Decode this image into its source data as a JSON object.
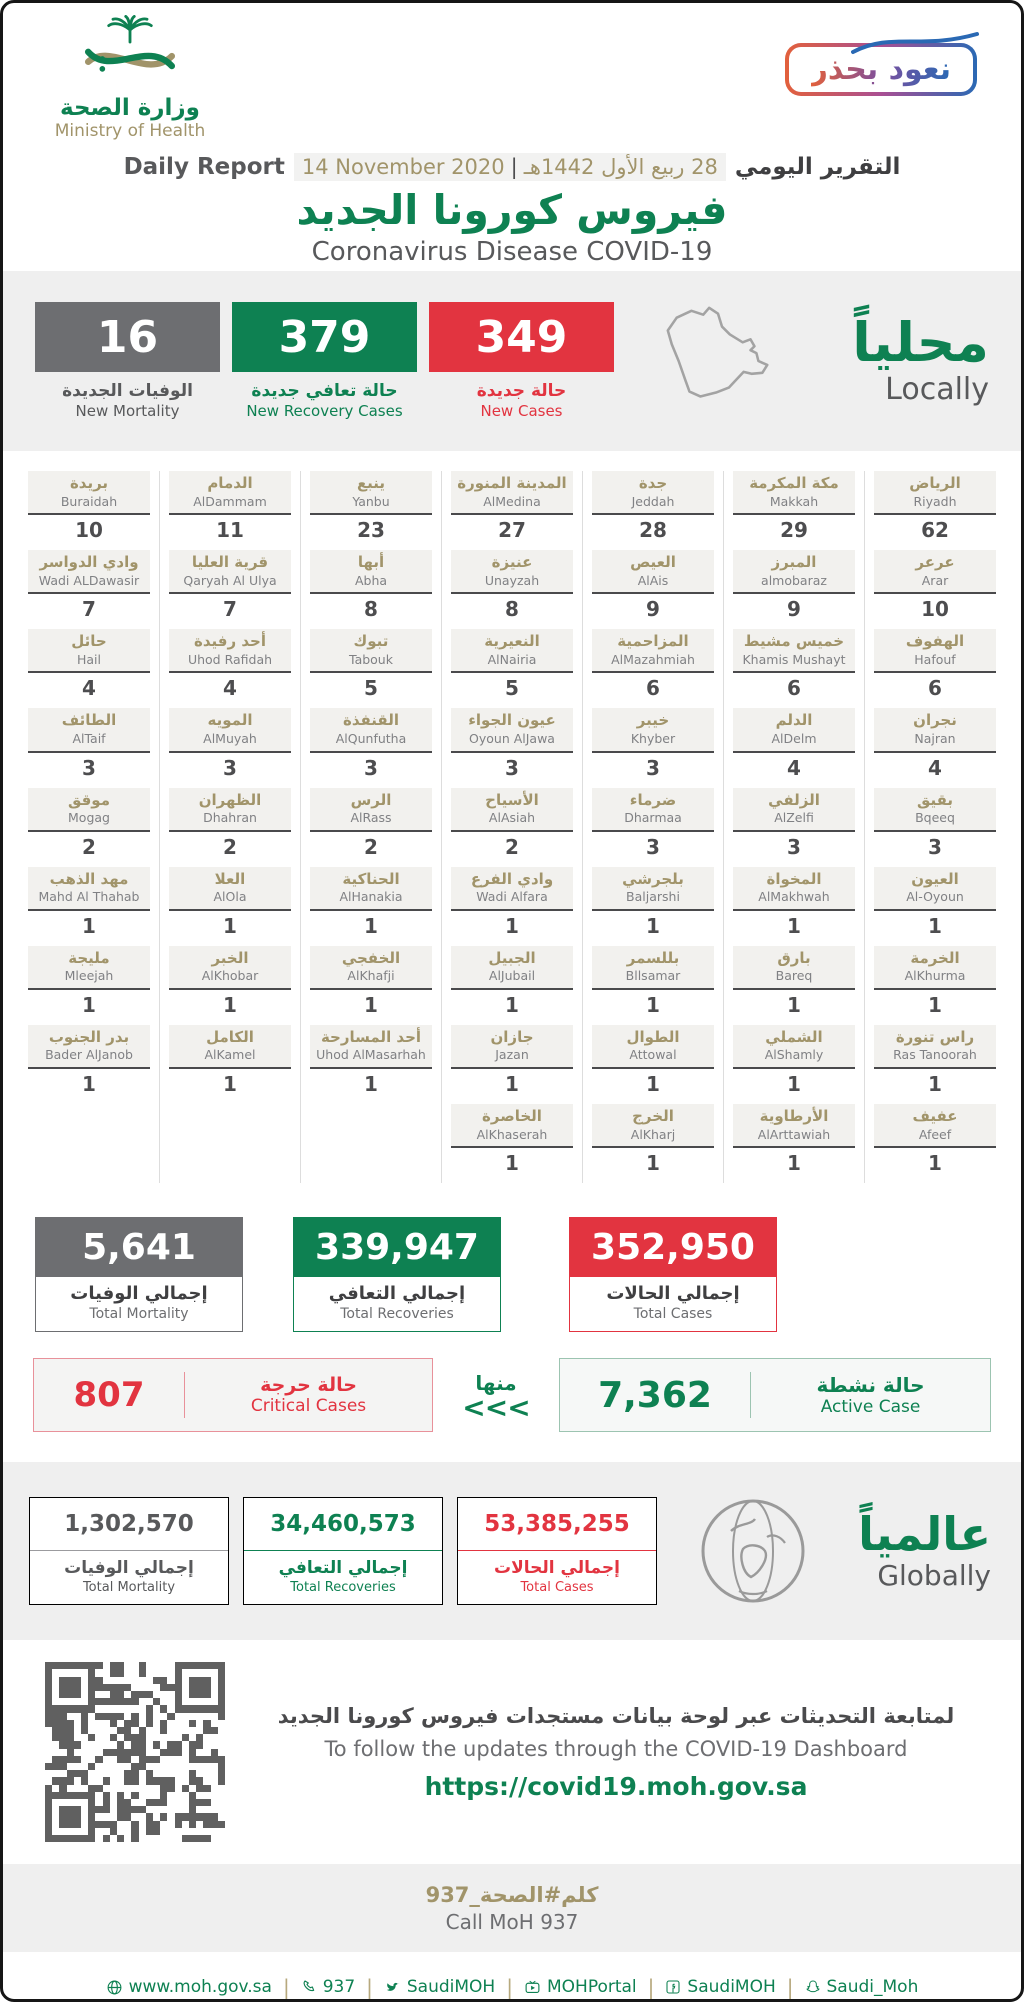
{
  "header": {
    "logo": {
      "ar": "وزارة الصحة",
      "en": "Ministry of Health"
    },
    "badge": {
      "label": "نعود بحذر"
    },
    "report": {
      "en_label": "Daily Report",
      "date_en": "14 November 2020",
      "pipe": "|",
      "date_hijri": "28 ربيع الأول 1442هـ",
      "ar_label": "التقرير اليومي"
    },
    "title_ar": "فيروس كورونا الجديد",
    "title_en": "Coronavirus Disease COVID-19"
  },
  "locally": {
    "label_ar": "محلياً",
    "label_en": "Locally",
    "new_mortality": {
      "value": "16",
      "ar": "الوفيات الجديدة",
      "en": "New Mortality"
    },
    "new_recoveries": {
      "value": "379",
      "ar": "حالة تعافي جديدة",
      "en": "New Recovery Cases"
    },
    "new_cases": {
      "value": "349",
      "ar": "حالة جديدة",
      "en": "New Cases"
    }
  },
  "cities": {
    "columns": [
      {
        "items": [
          {
            "ar": "بريدة",
            "en": "Buraidah",
            "value": "10"
          },
          {
            "ar": "وادي الدواسر",
            "en": "Wadi ALDawasir",
            "value": "7"
          },
          {
            "ar": "حائل",
            "en": "Hail",
            "value": "4"
          },
          {
            "ar": "الطائف",
            "en": "AlTaif",
            "value": "3"
          },
          {
            "ar": "موقق",
            "en": "Mogag",
            "value": "2"
          },
          {
            "ar": "مهد الذهب",
            "en": "Mahd Al Thahab",
            "value": "1"
          },
          {
            "ar": "مليجة",
            "en": "Mleejah",
            "value": "1"
          },
          {
            "ar": "بدر الجنوب",
            "en": "Bader AlJanob",
            "value": "1"
          }
        ]
      },
      {
        "items": [
          {
            "ar": "الدمام",
            "en": "AlDammam",
            "value": "11"
          },
          {
            "ar": "قرية العليا",
            "en": "Qaryah Al Ulya",
            "value": "7"
          },
          {
            "ar": "أحد رفيدة",
            "en": "Uhod Rafidah",
            "value": "4"
          },
          {
            "ar": "المويه",
            "en": "AlMuyah",
            "value": "3"
          },
          {
            "ar": "الظهران",
            "en": "Dhahran",
            "value": "2"
          },
          {
            "ar": "العلا",
            "en": "AlOla",
            "value": "1"
          },
          {
            "ar": "الخبر",
            "en": "AlKhobar",
            "value": "1"
          },
          {
            "ar": "الكامل",
            "en": "AlKamel",
            "value": "1"
          }
        ]
      },
      {
        "items": [
          {
            "ar": "ينبع",
            "en": "Yanbu",
            "value": "23"
          },
          {
            "ar": "أبها",
            "en": "Abha",
            "value": "8"
          },
          {
            "ar": "تبوك",
            "en": "Tabouk",
            "value": "5"
          },
          {
            "ar": "القنفذة",
            "en": "AlQunfutha",
            "value": "3"
          },
          {
            "ar": "الرس",
            "en": "AlRass",
            "value": "2"
          },
          {
            "ar": "الحناكية",
            "en": "AlHanakia",
            "value": "1"
          },
          {
            "ar": "الخفجي",
            "en": "AlKhafji",
            "value": "1"
          },
          {
            "ar": "أحد المسارحة",
            "en": "Uhod AlMasarhah",
            "value": "1"
          }
        ]
      },
      {
        "items": [
          {
            "ar": "المدينة المنورة",
            "en": "AlMedina",
            "value": "27"
          },
          {
            "ar": "عنيزة",
            "en": "Unayzah",
            "value": "8"
          },
          {
            "ar": "النعيرية",
            "en": "AlNairia",
            "value": "5"
          },
          {
            "ar": "عيون الجواء",
            "en": "Oyoun AlJawa",
            "value": "3"
          },
          {
            "ar": "الأسياح",
            "en": "AlAsiah",
            "value": "2"
          },
          {
            "ar": "وادي الفرع",
            "en": "Wadi Alfara",
            "value": "1"
          },
          {
            "ar": "الجبيل",
            "en": "AlJubail",
            "value": "1"
          },
          {
            "ar": "جازان",
            "en": "Jazan",
            "value": "1"
          },
          {
            "ar": "الخاصرة",
            "en": "AlKhaserah",
            "value": "1"
          }
        ]
      },
      {
        "items": [
          {
            "ar": "جدة",
            "en": "Jeddah",
            "value": "28"
          },
          {
            "ar": "العيص",
            "en": "AlAis",
            "value": "9"
          },
          {
            "ar": "المزاحمية",
            "en": "AlMazahmiah",
            "value": "6"
          },
          {
            "ar": "خيبر",
            "en": "Khyber",
            "value": "3"
          },
          {
            "ar": "ضرماء",
            "en": "Dharmaa",
            "value": "3"
          },
          {
            "ar": "بلجرشي",
            "en": "Baljarshi",
            "value": "1"
          },
          {
            "ar": "بللسمر",
            "en": "Bllsamar",
            "value": "1"
          },
          {
            "ar": "الطوال",
            "en": "Attowal",
            "value": "1"
          },
          {
            "ar": "الخرج",
            "en": "AlKharj",
            "value": "1"
          }
        ]
      },
      {
        "items": [
          {
            "ar": "مكة المكرمة",
            "en": "Makkah",
            "value": "29"
          },
          {
            "ar": "المبرز",
            "en": "almobaraz",
            "value": "9"
          },
          {
            "ar": "خميس مشيط",
            "en": "Khamis Mushayt",
            "value": "6"
          },
          {
            "ar": "الدلم",
            "en": "AlDelm",
            "value": "4"
          },
          {
            "ar": "الزلفي",
            "en": "AlZelfi",
            "value": "3"
          },
          {
            "ar": "المخواة",
            "en": "AlMakhwah",
            "value": "1"
          },
          {
            "ar": "بارق",
            "en": "Bareq",
            "value": "1"
          },
          {
            "ar": "الشملي",
            "en": "AlShamly",
            "value": "1"
          },
          {
            "ar": "الأرطاوية",
            "en": "AlArttawiah",
            "value": "1"
          }
        ]
      },
      {
        "items": [
          {
            "ar": "الرياض",
            "en": "Riyadh",
            "value": "62"
          },
          {
            "ar": "عرعر",
            "en": "Arar",
            "value": "10"
          },
          {
            "ar": "الهفوف",
            "en": "Hafouf",
            "value": "6"
          },
          {
            "ar": "نجران",
            "en": "Najran",
            "value": "4"
          },
          {
            "ar": "بقيق",
            "en": "Bqeeq",
            "value": "3"
          },
          {
            "ar": "العيون",
            "en": "Al-Oyoun",
            "value": "1"
          },
          {
            "ar": "الخرمة",
            "en": "AlKhurma",
            "value": "1"
          },
          {
            "ar": "راس تنورة",
            "en": "Ras Tanoorah",
            "value": "1"
          },
          {
            "ar": "عفيف",
            "en": "Afeef",
            "value": "1"
          }
        ]
      }
    ]
  },
  "totals": {
    "mortality": {
      "value": "5,641",
      "ar": "إجمالي الوفيات",
      "en": "Total Mortality"
    },
    "recoveries": {
      "value": "339,947",
      "ar": "إجمالي التعافي",
      "en": "Total Recoveries"
    },
    "cases": {
      "value": "352,950",
      "ar": "إجمالي الحالات",
      "en": "Total Cases"
    }
  },
  "critical": {
    "value": "807",
    "ar": "حالة حرجة",
    "en": "Critical Cases"
  },
  "minha": {
    "label": "منها",
    "arrows": "<<<"
  },
  "active": {
    "value": "7,362",
    "ar": "حالة نشطة",
    "en": "Active Case"
  },
  "globally": {
    "label_ar": "عالمياً",
    "label_en": "Globally",
    "mortality": {
      "value": "1,302,570",
      "ar": "إجمالي الوفيات",
      "en": "Total Mortality"
    },
    "recoveries": {
      "value": "34,460,573",
      "ar": "إجمالي التعافي",
      "en": "Total Recoveries"
    },
    "cases": {
      "value": "53,385,255",
      "ar": "إجمالي الحالات",
      "en": "Total Cases"
    }
  },
  "dashboard": {
    "line_ar": "لمتابعة التحديثات عبر لوحة بيانات مستجدات فيروس كورونا الجديد",
    "line_en": "To follow the updates through the COVID-19 Dashboard",
    "url": "https://covid19.moh.gov.sa"
  },
  "call": {
    "ar": "كلم#الصحة_937",
    "en": "Call MoH 937"
  },
  "footer": {
    "sep": "|",
    "items": [
      {
        "icon": "globe-icon",
        "label": "www.moh.gov.sa"
      },
      {
        "icon": "phone-icon",
        "label": "937"
      },
      {
        "icon": "twitter-icon",
        "label": "SaudiMOH"
      },
      {
        "icon": "youtube-icon",
        "label": "MOHPortal"
      },
      {
        "icon": "facebook-icon",
        "label": "SaudiMOH"
      },
      {
        "icon": "snapchat-icon",
        "label": "Saudi_Moh"
      }
    ]
  },
  "colors": {
    "green": "#0e8152",
    "khaki": "#a1946a",
    "red": "#e23440",
    "gray": "#6d6e71"
  }
}
